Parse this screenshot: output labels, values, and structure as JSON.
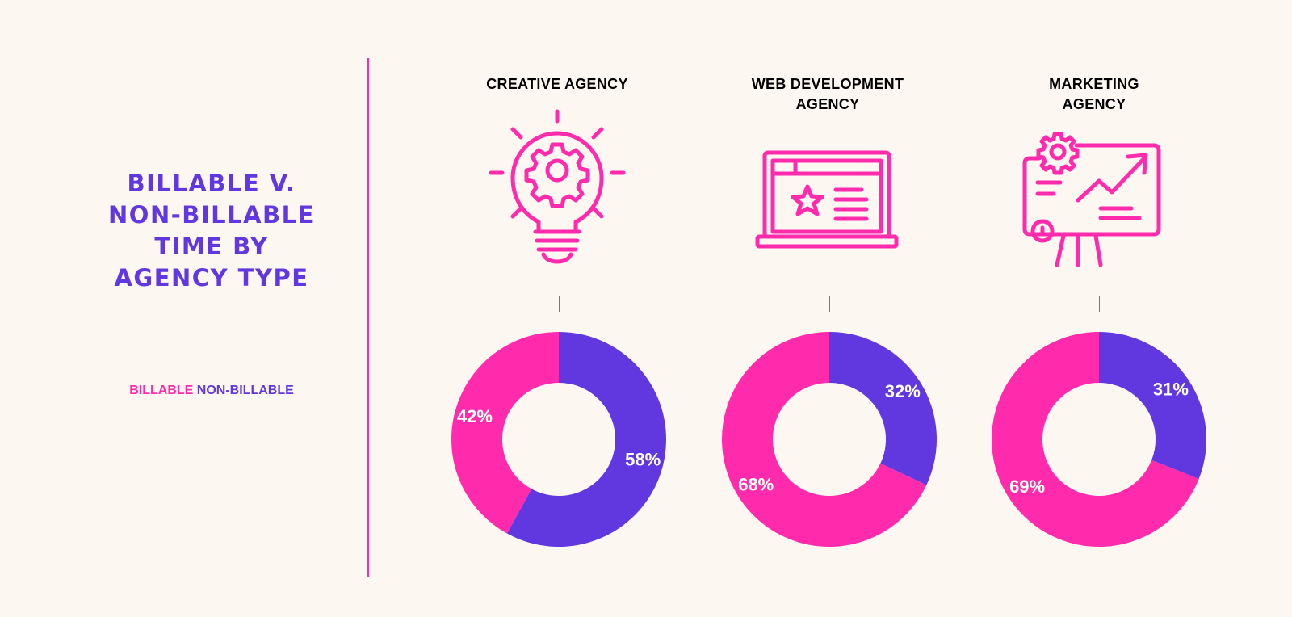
{
  "title": "BILLABLE V. NON-BILLABLE TIME BY AGENCY TYPE",
  "title_lines": [
    "BILLABLE V.",
    "NON-BILLABLE",
    "TIME BY",
    "AGENCY TYPE"
  ],
  "legend": {
    "billable_label": "BILLABLE",
    "non_billable_label": "NON-BILLABLE"
  },
  "colors": {
    "billable": "#ff2bac",
    "non_billable": "#6138e0",
    "background": "#fdf7f2",
    "label_text": "#ffffff"
  },
  "agencies": [
    {
      "title_lines": [
        "CREATIVE AGENCY"
      ],
      "icon": "lightbulb-gear-icon"
    },
    {
      "title_lines": [
        "WEB DEVELOPMENT",
        "AGENCY"
      ],
      "icon": "laptop-star-icon"
    },
    {
      "title_lines": [
        "MARKETING",
        "AGENCY"
      ],
      "icon": "presentation-board-icon"
    }
  ],
  "chart_data": [
    {
      "type": "pie",
      "title": "CREATIVE AGENCY",
      "categories": [
        "BILLABLE",
        "NON-BILLABLE"
      ],
      "values": [
        42,
        58
      ],
      "labels": [
        "42%",
        "58%"
      ],
      "style": "donut"
    },
    {
      "type": "pie",
      "title": "WEB DEVELOPMENT AGENCY",
      "categories": [
        "BILLABLE",
        "NON-BILLABLE"
      ],
      "values": [
        68,
        32
      ],
      "labels": [
        "68%",
        "32%"
      ],
      "style": "donut"
    },
    {
      "type": "pie",
      "title": "MARKETING AGENCY",
      "categories": [
        "BILLABLE",
        "NON-BILLABLE"
      ],
      "values": [
        69,
        31
      ],
      "labels": [
        "69%",
        "31%"
      ],
      "style": "donut"
    }
  ]
}
